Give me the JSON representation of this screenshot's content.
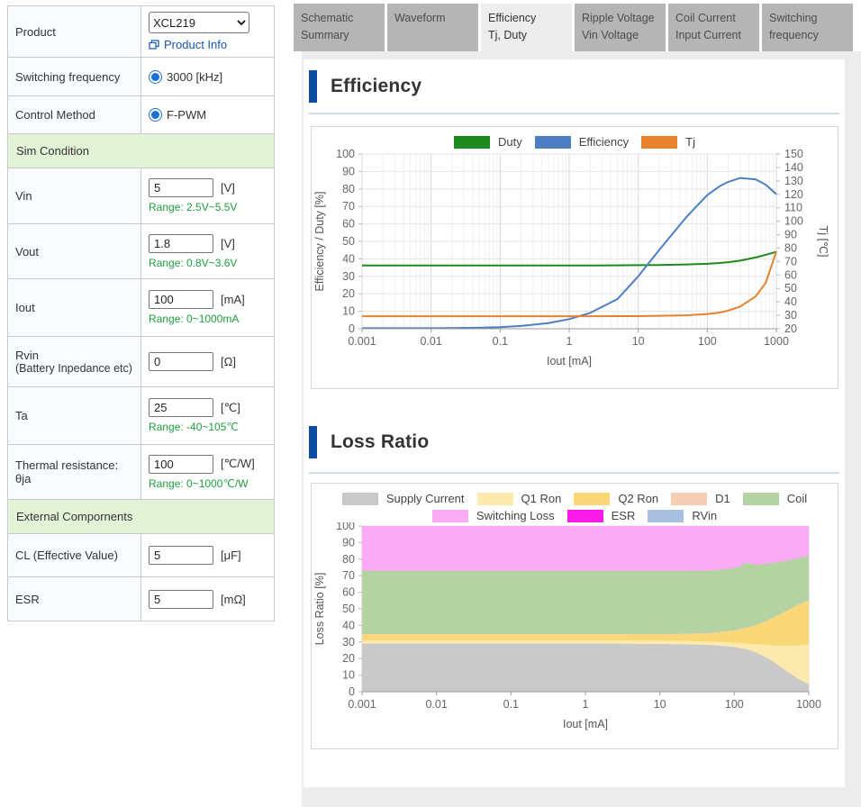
{
  "form": {
    "product": {
      "label": "Product",
      "select_value": "XCL219",
      "info_link": "Product Info"
    },
    "switching_frequency": {
      "label": "Switching frequency",
      "option": "3000 [kHz]"
    },
    "control_method": {
      "label": "Control Method",
      "option": "F-PWM"
    },
    "sim_condition_header": "Sim Condition",
    "fields": [
      {
        "label": "Vin",
        "value": "5",
        "unit": "[V]",
        "range": "Range: 2.5V~5.5V"
      },
      {
        "label": "Vout",
        "value": "1.8",
        "unit": "[V]",
        "range": "Range: 0.8V~3.6V"
      },
      {
        "label": "Iout",
        "value": "100",
        "unit": "[mA]",
        "range": "Range: 0~1000mA"
      },
      {
        "label": "Rvin",
        "label2": "(Battery Inpedance etc)",
        "value": "0",
        "unit": "[Ω]"
      },
      {
        "label": "Ta",
        "value": "25",
        "unit": "[℃]",
        "range": "Range: -40~105℃"
      },
      {
        "label": "Thermal resistance: θja",
        "value": "100",
        "unit": "[℃/W]",
        "range": "Range: 0~1000℃/W"
      }
    ],
    "external_components_header": "External Compornents",
    "ext_fields": [
      {
        "label": "CL (Effective Value)",
        "value": "5",
        "unit": "[μF]"
      },
      {
        "label": "ESR",
        "value": "5",
        "unit": "[mΩ]"
      }
    ]
  },
  "tabs": [
    {
      "line1": "Schematic",
      "line2": "Summary",
      "active": false
    },
    {
      "line1": "Waveform",
      "line2": "",
      "active": false
    },
    {
      "line1": "Efficiency",
      "line2": "Tj, Duty",
      "active": true
    },
    {
      "line1": "Ripple Voltage",
      "line2": "Vin Voltage",
      "active": false
    },
    {
      "line1": "Coil Current",
      "line2": "Input Current",
      "active": false
    },
    {
      "line1": "Switching",
      "line2": "frequency",
      "active": false
    }
  ],
  "sections": {
    "efficiency_title": "Efficiency",
    "loss_title": "Loss Ratio"
  },
  "colors": {
    "accent_bar": "#0d4da1",
    "link_blue": "#1557b8",
    "range_green": "#1f9e3e",
    "section_header_green": "#e3f3d7",
    "panel_gray": "#ececec",
    "tab_gray": "#b5b5b5"
  },
  "chart_data": [
    {
      "type": "line",
      "title": "Efficiency",
      "x_axis": {
        "label": "Iout [mA]",
        "scale": "log",
        "min": 0.001,
        "max": 1000,
        "ticks": [
          "0.001",
          "0.01",
          "0.1",
          "1",
          "10",
          "100",
          "1000"
        ]
      },
      "y_left": {
        "label": "Efficiency / Duty [%]",
        "min": 0,
        "max": 100,
        "step": 10
      },
      "y_right": {
        "label": "Tj [℃]",
        "min": 20,
        "max": 150,
        "step": 10
      },
      "grid": true,
      "legend_position": "top",
      "x": [
        0.001,
        0.002,
        0.005,
        0.01,
        0.02,
        0.05,
        0.1,
        0.2,
        0.5,
        1,
        2,
        5,
        10,
        20,
        50,
        100,
        150,
        200,
        300,
        500,
        700,
        1000
      ],
      "series": [
        {
          "name": "Duty",
          "color": "#1e8a1e",
          "axis": "left",
          "values": [
            36.2,
            36.2,
            36.2,
            36.2,
            36.2,
            36.2,
            36.2,
            36.2,
            36.2,
            36.2,
            36.2,
            36.3,
            36.4,
            36.5,
            36.8,
            37.2,
            37.6,
            38.1,
            39,
            40.8,
            42.3,
            44
          ]
        },
        {
          "name": "Efficiency",
          "color": "#4d7ec4",
          "axis": "left",
          "values": [
            0.3,
            0.3,
            0.3,
            0.3,
            0.4,
            0.6,
            0.9,
            1.6,
            3.2,
            5.5,
            9,
            17,
            30,
            45,
            64,
            76.5,
            81.5,
            84,
            86.3,
            85.5,
            82.5,
            77
          ]
        },
        {
          "name": "Tj",
          "color": "#e8812e",
          "axis": "right",
          "values": [
            29.3,
            29.3,
            29.3,
            29.3,
            29.3,
            29.3,
            29.3,
            29.3,
            29.3,
            29.3,
            29.3,
            29.4,
            29.4,
            29.6,
            30,
            31,
            32,
            33.5,
            36.5,
            44,
            54,
            77.5
          ]
        }
      ]
    },
    {
      "type": "area",
      "title": "Loss Ratio",
      "stacked": true,
      "normalized": true,
      "x_axis": {
        "label": "Iout [mA]",
        "scale": "log",
        "min": 0.001,
        "max": 1000,
        "ticks": [
          "0.001",
          "0.01",
          "0.1",
          "1",
          "10",
          "100",
          "1000"
        ]
      },
      "y_left": {
        "label": "Loss Ratio [%]",
        "min": 0,
        "max": 100,
        "step": 10
      },
      "grid": true,
      "legend_position": "top",
      "legend_rows": [
        [
          "Supply Current",
          "Q1 Ron",
          "Q2 Ron",
          "D1",
          "Coil"
        ],
        [
          "Switching Loss",
          "ESR",
          "RVin"
        ]
      ],
      "x": [
        0.001,
        0.002,
        0.005,
        0.01,
        0.02,
        0.05,
        0.1,
        0.2,
        0.5,
        1,
        2,
        5,
        10,
        20,
        50,
        100,
        150,
        200,
        300,
        500,
        700,
        1000
      ],
      "layers": [
        {
          "name": "Supply Current",
          "color": "#c9c9c9",
          "cumulative_top": [
            29,
            29,
            29,
            29,
            29,
            29,
            29,
            29,
            29,
            29,
            29,
            28.9,
            28.8,
            28.6,
            28.2,
            27,
            25.5,
            23.5,
            19.5,
            12.5,
            8,
            4.5
          ]
        },
        {
          "name": "Q1 Ron",
          "color": "#fbe9ae",
          "cumulative_top": [
            31,
            31,
            31,
            31,
            31,
            31,
            31,
            31,
            31,
            31,
            31,
            30.9,
            30.9,
            30.7,
            30.3,
            29.6,
            29,
            28.6,
            28,
            27.7,
            28,
            28.7
          ]
        },
        {
          "name": "Q2 Ron",
          "color": "#fad878",
          "cumulative_top": [
            34.5,
            34.5,
            34.5,
            34.5,
            34.5,
            34.5,
            34.5,
            34.5,
            34.5,
            34.5,
            34.5,
            34.5,
            34.5,
            34.6,
            35.2,
            36.8,
            38.5,
            40,
            43.5,
            48.5,
            52,
            55
          ]
        },
        {
          "name": "D1",
          "color": "#f5cfb4",
          "cumulative_top": [
            34.8,
            34.8,
            34.8,
            34.8,
            34.8,
            34.8,
            34.8,
            34.8,
            34.8,
            34.8,
            34.8,
            34.8,
            34.8,
            34.9,
            35.5,
            37.1,
            38.8,
            40.3,
            43.8,
            48.8,
            52.3,
            55.3
          ]
        },
        {
          "name": "Coil",
          "color": "#b5d3a2",
          "cumulative_top": [
            73,
            73,
            73,
            73,
            73,
            73,
            73,
            73,
            73,
            73,
            73,
            73,
            73,
            73,
            73.2,
            74.5,
            77.8,
            76.6,
            77.5,
            79,
            80.5,
            82
          ]
        },
        {
          "name": "Switching Loss",
          "color": "#fbaaf6",
          "cumulative_top": [
            100,
            100,
            100,
            100,
            100,
            100,
            100,
            100,
            100,
            100,
            100,
            100,
            100,
            100,
            100,
            100,
            100,
            100,
            100,
            100,
            100,
            100
          ]
        },
        {
          "name": "ESR",
          "color": "#fb1ae8",
          "cumulative_top": [
            100,
            100,
            100,
            100,
            100,
            100,
            100,
            100,
            100,
            100,
            100,
            100,
            100,
            100,
            100,
            100,
            100,
            100,
            100,
            100,
            100,
            100
          ]
        },
        {
          "name": "RVin",
          "color": "#a9bfdf",
          "cumulative_top": [
            100,
            100,
            100,
            100,
            100,
            100,
            100,
            100,
            100,
            100,
            100,
            100,
            100,
            100,
            100,
            100,
            100,
            100,
            100,
            100,
            100,
            100
          ]
        }
      ]
    }
  ]
}
